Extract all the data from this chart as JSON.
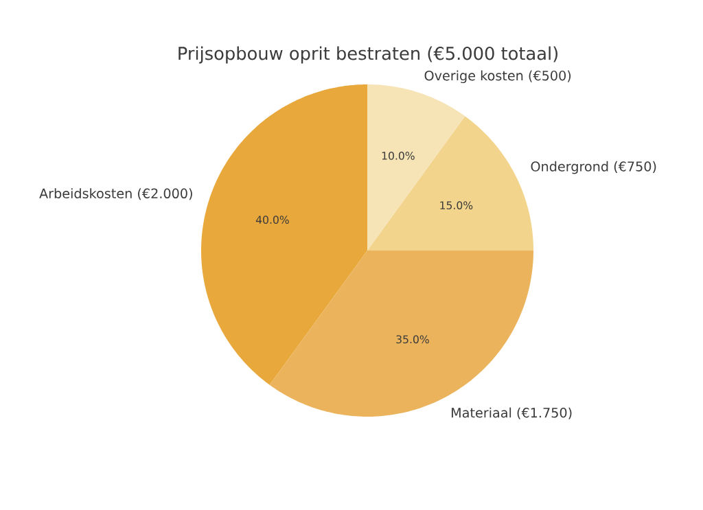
{
  "chart_data": {
    "type": "pie",
    "title": "Prijsopbouw oprit bestraten (€5.000 totaal)",
    "categories": [
      "Arbeidskosten (€2.000)",
      "Materiaal (€1.750)",
      "Ondergrond (€750)",
      "Overige kosten (€500)"
    ],
    "values": [
      40,
      35,
      15,
      10
    ],
    "colors": [
      "#e9a83b",
      "#ebb45c",
      "#f2d48c",
      "#f7e4b6"
    ],
    "value_labels": [
      "40.0%",
      "35.0%",
      "15.0%",
      "10.0%"
    ]
  }
}
